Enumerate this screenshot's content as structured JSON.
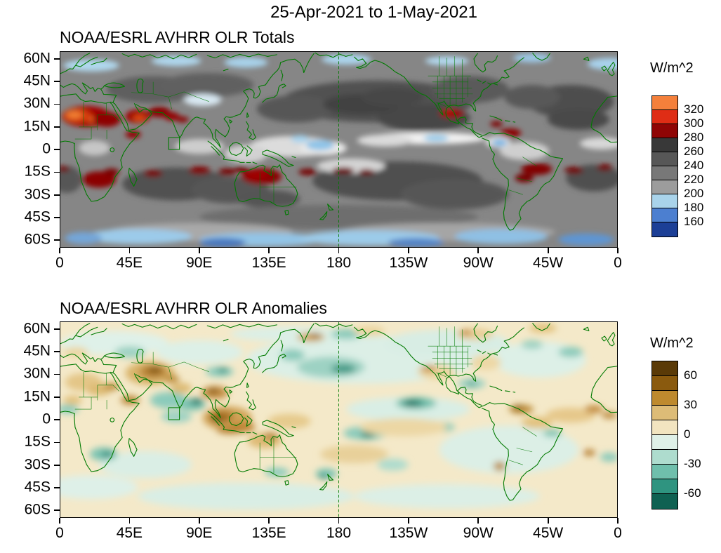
{
  "figure": {
    "title": "25-Apr-2021 to 1-May-2021"
  },
  "panels": [
    {
      "title": "NOAA/ESRL AVHRR OLR Totals",
      "colorbar": {
        "label": "W/m^2",
        "colors": [
          "#F4803B",
          "#DF2D15",
          "#8F0505",
          "#383838",
          "#575757",
          "#787878",
          "#9C9C9C",
          "#A9D3EA",
          "#4C7FD0",
          "#1C3F96"
        ],
        "ticks": [
          {
            "label": "320",
            "boundary": 1
          },
          {
            "label": "300",
            "boundary": 2
          },
          {
            "label": "280",
            "boundary": 3
          },
          {
            "label": "260",
            "boundary": 4
          },
          {
            "label": "240",
            "boundary": 5
          },
          {
            "label": "220",
            "boundary": 6
          },
          {
            "label": "200",
            "boundary": 7
          },
          {
            "label": "180",
            "boundary": 8
          },
          {
            "label": "160",
            "boundary": 9
          }
        ]
      },
      "y_ticks": [
        {
          "label": "60N",
          "lat": 60
        },
        {
          "label": "45N",
          "lat": 45
        },
        {
          "label": "30N",
          "lat": 30
        },
        {
          "label": "15N",
          "lat": 15
        },
        {
          "label": "0",
          "lat": 0
        },
        {
          "label": "15S",
          "lat": -15
        },
        {
          "label": "30S",
          "lat": -30
        },
        {
          "label": "45S",
          "lat": -45
        },
        {
          "label": "60S",
          "lat": -60
        }
      ],
      "x_ticks": [
        {
          "label": "0",
          "lon": 0
        },
        {
          "label": "45E",
          "lon": 45
        },
        {
          "label": "90E",
          "lon": 90
        },
        {
          "label": "135E",
          "lon": 135
        },
        {
          "label": "180",
          "lon": 180
        },
        {
          "label": "135W",
          "lon": 225
        },
        {
          "label": "90W",
          "lon": 270
        },
        {
          "label": "45W",
          "lon": 315
        },
        {
          "label": "0",
          "lon": 360
        }
      ]
    },
    {
      "title": "NOAA/ESRL AVHRR OLR Anomalies",
      "colorbar": {
        "label": "W/m^2",
        "colors": [
          "#5A3A07",
          "#8A5A0E",
          "#BE8A2E",
          "#DDBC77",
          "#F2E4C0",
          "#DFF0E8",
          "#AEDCCE",
          "#6FBFAC",
          "#2F9480",
          "#0F6152"
        ],
        "ticks": [
          {
            "label": "60",
            "boundary": 1
          },
          {
            "label": "30",
            "boundary": 3
          },
          {
            "label": "0",
            "boundary": 5
          },
          {
            "label": "-30",
            "boundary": 7
          },
          {
            "label": "-60",
            "boundary": 9
          }
        ]
      },
      "y_ticks": [
        {
          "label": "60N",
          "lat": 60
        },
        {
          "label": "45N",
          "lat": 45
        },
        {
          "label": "30N",
          "lat": 30
        },
        {
          "label": "15N",
          "lat": 15
        },
        {
          "label": "0",
          "lat": 0
        },
        {
          "label": "15S",
          "lat": -15
        },
        {
          "label": "30S",
          "lat": -30
        },
        {
          "label": "45S",
          "lat": -45
        },
        {
          "label": "60S",
          "lat": -60
        }
      ],
      "x_ticks": [
        {
          "label": "0",
          "lon": 0
        },
        {
          "label": "45E",
          "lon": 45
        },
        {
          "label": "90E",
          "lon": 90
        },
        {
          "label": "135E",
          "lon": 135
        },
        {
          "label": "180",
          "lon": 180
        },
        {
          "label": "135W",
          "lon": 225
        },
        {
          "label": "90W",
          "lon": 270
        },
        {
          "label": "45W",
          "lon": 315
        },
        {
          "label": "0",
          "lon": 360
        }
      ]
    }
  ],
  "chart_data": [
    {
      "type": "heatmap",
      "title": "NOAA/ESRL AVHRR OLR Totals",
      "period": "25-Apr-2021 to 1-May-2021",
      "units": "W/m^2",
      "projection": "cylindrical equidistant world map, longitude 0E eastward to 360E (dateline 180 marked with dashed green line), latitude about 65N to 65S",
      "x_tick_labels": [
        "0",
        "45E",
        "90E",
        "135E",
        "180",
        "135W",
        "90W",
        "45W",
        "0"
      ],
      "y_tick_labels": [
        "60N",
        "45N",
        "30N",
        "15N",
        "0",
        "15S",
        "30S",
        "45S",
        "60S"
      ],
      "contour_levels": [
        160,
        180,
        200,
        220,
        240,
        260,
        280,
        300,
        320
      ],
      "colors_high_to_low": [
        "#F4803B",
        "#DF2D15",
        "#8F0505",
        "#383838",
        "#575757",
        "#787878",
        "#9C9C9C",
        "#A9D3EA",
        "#4C7FD0",
        "#1C3F96"
      ],
      "legend_position": "right",
      "coastline_color": "#007A00",
      "features": [
        "High OLR (>300 W/m^2, orange/red) over the Sahara and West Africa, Arabian Peninsula, Pakistan/NW India, Horn of Africa and Mexico",
        "Dark-red patches (280-300 W/m^2) over southern subtropical Africa, interior Australia, subtropical South America, northern South America coast and subtropical ocean bands near 15-25S",
        "Low OLR (<200 W/m^2, white/pale blue) along the equatorial ITCZ: west Pacific warm pool, east Pacific ITCZ near 8N, Amazon, Congo, equatorial Indian Ocean and Tibetan Plateau",
        "Blue bands (<180 W/m^2) at high latitudes poleward of about 50 in both hemispheres",
        "Gray shading (200-280 W/m^2) over most mid-latitude and subtropical oceans"
      ]
    },
    {
      "type": "heatmap",
      "title": "NOAA/ESRL AVHRR OLR Anomalies",
      "period": "25-Apr-2021 to 1-May-2021",
      "units": "W/m^2",
      "projection": "cylindrical equidistant world map, longitude 0E eastward to 360E (dateline 180 marked with dashed green line), latitude about 65N to 65S",
      "x_tick_labels": [
        "0",
        "45E",
        "90E",
        "135E",
        "180",
        "135W",
        "90W",
        "45W",
        "0"
      ],
      "y_tick_labels": [
        "60N",
        "45N",
        "30N",
        "15N",
        "0",
        "15S",
        "30S",
        "45S",
        "60S"
      ],
      "contour_levels": [
        -60,
        -45,
        -30,
        -15,
        0,
        15,
        30,
        45,
        60
      ],
      "colors_high_to_low": [
        "#5A3A07",
        "#8A5A0E",
        "#BE8A2E",
        "#DDBC77",
        "#F2E4C0",
        "#DFF0E8",
        "#AEDCCE",
        "#6FBFAC",
        "#2F9480",
        "#0F6152"
      ],
      "legend_position": "right",
      "coastline_color": "#007A00",
      "features": [
        "Positive anomalies (tan/brown, +15 to +60 W/m^2, suppressed convection) over the Middle East/Iran/Pakistan, Maritime Continent (Sumatra-Borneo-Java), Indochina, northern Australia, west-equatorial Pacific, equatorial Atlantic and northeast South America",
        "Negative anomalies (teal, -15 to -60 W/m^2, enhanced convection) over the Bay of Bengal/south India, east Pacific ITCZ near 130W, central North Pacific, central South Pacific, southern Africa, Tibetan Plateau and Caribbean",
        "Near-zero anomalies (cream / pale green, within +-15 W/m^2) over most remaining areas"
      ]
    }
  ]
}
